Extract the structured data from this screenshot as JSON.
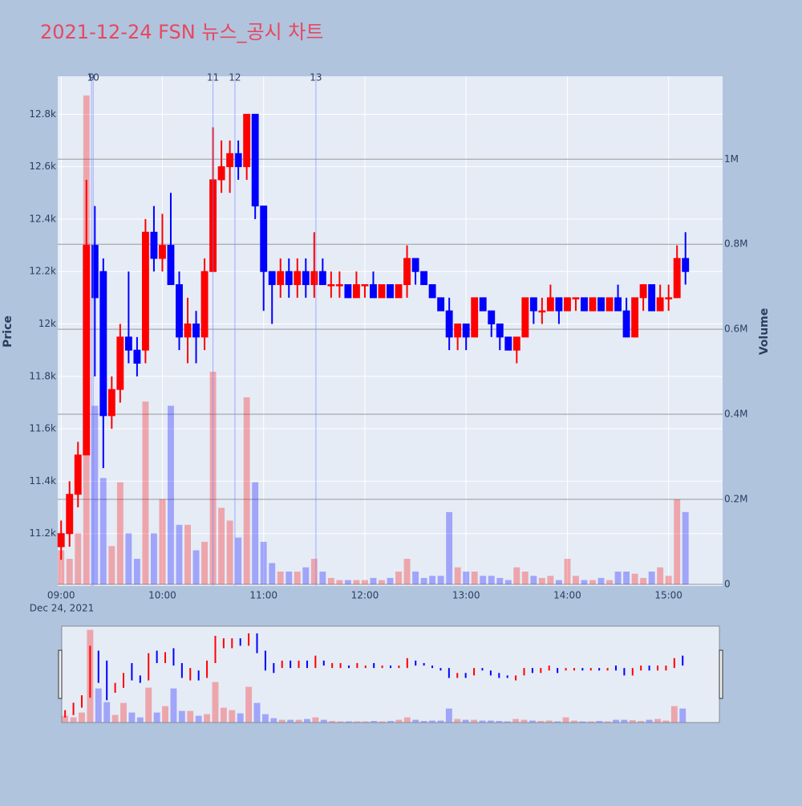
{
  "chart_data": {
    "type": "candlestick",
    "title": "2021-12-24 FSN 뉴스_공시 차트",
    "y_label": "Price",
    "y2_label": "Volume",
    "date_label": "Dec 24, 2021",
    "x": [
      "09:00",
      "09:05",
      "09:10",
      "09:15",
      "09:20",
      "09:25",
      "09:30",
      "09:35",
      "09:40",
      "09:45",
      "09:50",
      "09:55",
      "10:00",
      "10:05",
      "10:10",
      "10:15",
      "10:20",
      "10:25",
      "10:30",
      "10:35",
      "10:40",
      "10:45",
      "10:50",
      "10:55",
      "11:00",
      "11:05",
      "11:10",
      "11:15",
      "11:20",
      "11:25",
      "11:30",
      "11:35",
      "11:40",
      "11:45",
      "11:50",
      "11:55",
      "12:00",
      "12:05",
      "12:10",
      "12:15",
      "12:20",
      "12:25",
      "12:30",
      "12:35",
      "12:40",
      "12:45",
      "12:50",
      "12:55",
      "13:00",
      "13:05",
      "13:10",
      "13:15",
      "13:20",
      "13:25",
      "13:30",
      "13:35",
      "13:40",
      "13:45",
      "13:50",
      "13:55",
      "14:00",
      "14:05",
      "14:10",
      "14:15",
      "14:20",
      "14:25",
      "14:30",
      "14:35",
      "14:40",
      "14:45",
      "14:50",
      "14:55",
      "15:00",
      "15:05",
      "15:10"
    ],
    "open": [
      11150,
      11200,
      11350,
      11500,
      12300,
      12200,
      11650,
      11750,
      11950,
      11900,
      11900,
      12350,
      12250,
      12300,
      12150,
      11950,
      12000,
      11950,
      12200,
      12550,
      12600,
      12650,
      12600,
      12800,
      12450,
      12200,
      12150,
      12200,
      12150,
      12200,
      12150,
      12200,
      12150,
      12150,
      12150,
      12100,
      12150,
      12150,
      12100,
      12150,
      12100,
      12150,
      12250,
      12200,
      12150,
      12100,
      12050,
      11950,
      12000,
      11950,
      12100,
      12050,
      12000,
      11950,
      11900,
      11950,
      12100,
      12050,
      12050,
      12100,
      12050,
      12100,
      12100,
      12050,
      12100,
      12050,
      12100,
      12050,
      11950,
      12100,
      12150,
      12050,
      12100,
      12100,
      12250
    ],
    "high": [
      11250,
      11400,
      11550,
      12550,
      12450,
      12250,
      11800,
      12000,
      12200,
      11950,
      12400,
      12450,
      12420,
      12500,
      12200,
      12100,
      12050,
      12250,
      12750,
      12700,
      12700,
      12700,
      12800,
      12800,
      12450,
      12200,
      12250,
      12250,
      12250,
      12250,
      12350,
      12250,
      12200,
      12200,
      12150,
      12200,
      12150,
      12200,
      12150,
      12150,
      12150,
      12300,
      12250,
      12200,
      12150,
      12100,
      12100,
      12000,
      12000,
      12100,
      12100,
      12050,
      12000,
      11950,
      11950,
      12100,
      12100,
      12100,
      12150,
      12100,
      12100,
      12100,
      12100,
      12100,
      12100,
      12100,
      12150,
      12100,
      12100,
      12150,
      12150,
      12150,
      12150,
      12300,
      12350
    ],
    "low": [
      11100,
      11150,
      11300,
      11500,
      11800,
      11450,
      11600,
      11700,
      11850,
      11800,
      11850,
      12200,
      12200,
      12150,
      11900,
      11850,
      11850,
      11900,
      12200,
      12500,
      12500,
      12550,
      12550,
      12400,
      12050,
      12000,
      12100,
      12100,
      12100,
      12100,
      12100,
      12150,
      12100,
      12100,
      12100,
      12100,
      12100,
      12100,
      12100,
      12100,
      12100,
      12100,
      12150,
      12150,
      12100,
      12050,
      11900,
      11900,
      11900,
      11950,
      12050,
      11950,
      11900,
      11900,
      11850,
      11950,
      12000,
      12000,
      12050,
      12000,
      12050,
      12050,
      12050,
      12050,
      12050,
      12050,
      12050,
      11950,
      11950,
      12050,
      12050,
      12050,
      12050,
      12100,
      12150
    ],
    "close": [
      11200,
      11350,
      11500,
      12300,
      12100,
      11650,
      11750,
      11950,
      11900,
      11850,
      12350,
      12250,
      12300,
      12150,
      11950,
      12000,
      11950,
      12200,
      12550,
      12600,
      12650,
      12600,
      12800,
      12450,
      12200,
      12150,
      12200,
      12150,
      12200,
      12150,
      12200,
      12150,
      12150,
      12150,
      12100,
      12150,
      12150,
      12100,
      12150,
      12100,
      12150,
      12250,
      12200,
      12150,
      12100,
      12050,
      11950,
      12000,
      11950,
      12100,
      12050,
      12000,
      11950,
      11900,
      11950,
      12100,
      12050,
      12050,
      12100,
      12050,
      12100,
      12100,
      12050,
      12100,
      12050,
      12100,
      12050,
      11950,
      12100,
      12150,
      12050,
      12100,
      12100,
      12250,
      12200
    ],
    "volume": [
      80000,
      60000,
      120000,
      1150000,
      420000,
      250000,
      90000,
      240000,
      120000,
      60000,
      430000,
      120000,
      200000,
      420000,
      140000,
      140000,
      80000,
      100000,
      500000,
      180000,
      150000,
      110000,
      440000,
      240000,
      100000,
      50000,
      30000,
      30000,
      30000,
      40000,
      60000,
      30000,
      15000,
      10000,
      10000,
      10000,
      10000,
      15000,
      10000,
      15000,
      30000,
      60000,
      30000,
      15000,
      20000,
      20000,
      170000,
      40000,
      30000,
      30000,
      20000,
      20000,
      15000,
      10000,
      40000,
      30000,
      20000,
      15000,
      20000,
      10000,
      60000,
      20000,
      10000,
      10000,
      15000,
      10000,
      30000,
      30000,
      25000,
      15000,
      30000,
      40000,
      20000,
      200000,
      170000
    ],
    "increasing_color": "#ff0000",
    "decreasing_color": "#0000ff",
    "xlim": [
      "08:58",
      "15:32"
    ],
    "xticks": [
      "09:00",
      "10:00",
      "11:00",
      "12:00",
      "13:00",
      "14:00",
      "15:00"
    ],
    "ylim": [
      11000,
      12945
    ],
    "yticks": [
      {
        "value": 11200,
        "label": "11.2k"
      },
      {
        "value": 11400,
        "label": "11.4k"
      },
      {
        "value": 11600,
        "label": "11.6k"
      },
      {
        "value": 11800,
        "label": "11.8k"
      },
      {
        "value": 12000,
        "label": "12k"
      },
      {
        "value": 12200,
        "label": "12.2k"
      },
      {
        "value": 12400,
        "label": "12.4k"
      },
      {
        "value": 12600,
        "label": "12.6k"
      },
      {
        "value": 12800,
        "label": "12.8k"
      }
    ],
    "y2lim": [
      -4000,
      1195000
    ],
    "y2ticks": [
      0,
      {
        "value": 200000,
        "label": "0.2M"
      },
      {
        "value": 400000,
        "label": "0.4M"
      },
      {
        "value": 600000,
        "label": "0.6M"
      },
      {
        "value": 800000,
        "label": "0.8M"
      },
      {
        "value": 1000000,
        "label": "1M"
      }
    ],
    "annotations": [
      {
        "x": "09:18",
        "text": "9"
      },
      {
        "x": "09:19",
        "text": "10"
      },
      {
        "x": "10:30",
        "text": "11"
      },
      {
        "x": "10:43",
        "text": "12"
      },
      {
        "x": "11:31",
        "text": "13"
      }
    ],
    "grid": true,
    "range_slider": true
  }
}
